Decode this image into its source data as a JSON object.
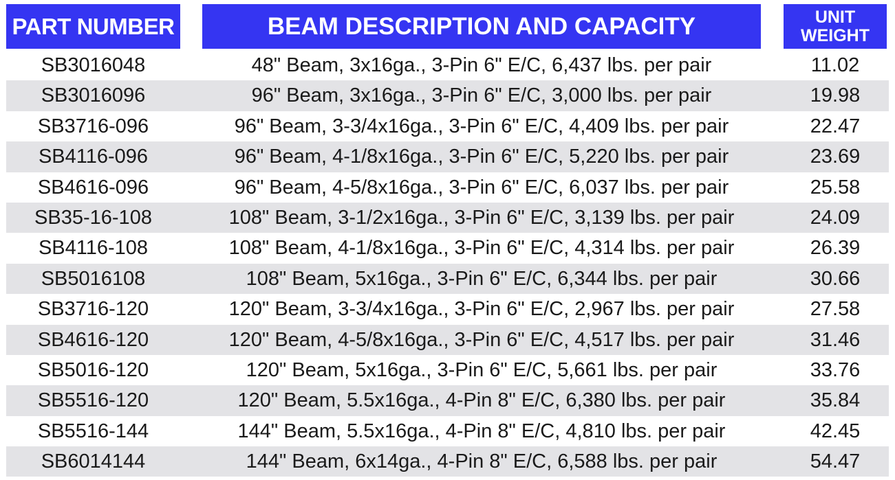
{
  "header": {
    "part_number": "PART NUMBER",
    "description": "BEAM DESCRIPTION AND CAPACITY",
    "unit_weight_line1": "UNIT",
    "unit_weight_line2": "WEIGHT"
  },
  "colors": {
    "header_bg": "#3535f2",
    "header_text": "#ffffff",
    "row_shade": "#e3e3e6"
  },
  "rows": [
    {
      "part": "SB3016048",
      "desc": "48\" Beam, 3x16ga., 3-Pin 6\" E/C, 6,437 lbs. per pair",
      "weight": "11.02"
    },
    {
      "part": "SB3016096",
      "desc": "96\" Beam, 3x16ga., 3-Pin 6\" E/C, 3,000 lbs. per pair",
      "weight": "19.98"
    },
    {
      "part": "SB3716-096",
      "desc": "96\" Beam, 3-3/4x16ga., 3-Pin 6\" E/C, 4,409 lbs. per pair",
      "weight": "22.47"
    },
    {
      "part": "SB4116-096",
      "desc": "96\" Beam, 4-1/8x16ga., 3-Pin 6\" E/C, 5,220 lbs. per pair",
      "weight": "23.69"
    },
    {
      "part": "SB4616-096",
      "desc": "96\" Beam, 4-5/8x16ga., 3-Pin 6\" E/C, 6,037 lbs. per pair",
      "weight": "25.58"
    },
    {
      "part": "SB35-16-108",
      "desc": "108\" Beam, 3-1/2x16ga., 3-Pin 6\" E/C, 3,139 lbs. per pair",
      "weight": "24.09"
    },
    {
      "part": "SB4116-108",
      "desc": "108\" Beam, 4-1/8x16ga., 3-Pin 6\" E/C, 4,314 lbs. per pair",
      "weight": "26.39"
    },
    {
      "part": "SB5016108",
      "desc": "108\" Beam, 5x16ga., 3-Pin 6\" E/C, 6,344 lbs. per pair",
      "weight": "30.66"
    },
    {
      "part": "SB3716-120",
      "desc": "120\" Beam, 3-3/4x16ga., 3-Pin 6\" E/C, 2,967 lbs. per pair",
      "weight": "27.58"
    },
    {
      "part": "SB4616-120",
      "desc": "120\" Beam, 4-5/8x16ga., 3-Pin 6\" E/C, 4,517 lbs. per pair",
      "weight": "31.46"
    },
    {
      "part": "SB5016-120",
      "desc": "120\" Beam, 5x16ga., 3-Pin 6\" E/C, 5,661 lbs. per pair",
      "weight": "33.76"
    },
    {
      "part": "SB5516-120",
      "desc": "120\" Beam, 5.5x16ga., 4-Pin 8\" E/C, 6,380 lbs. per pair",
      "weight": "35.84"
    },
    {
      "part": "SB5516-144",
      "desc": "144\" Beam, 5.5x16ga., 4-Pin 8\" E/C, 4,810 lbs. per pair",
      "weight": "42.45"
    },
    {
      "part": "SB6014144",
      "desc": "144\" Beam, 6x14ga., 4-Pin 8\" E/C, 6,588 lbs. per pair",
      "weight": "54.47"
    }
  ]
}
